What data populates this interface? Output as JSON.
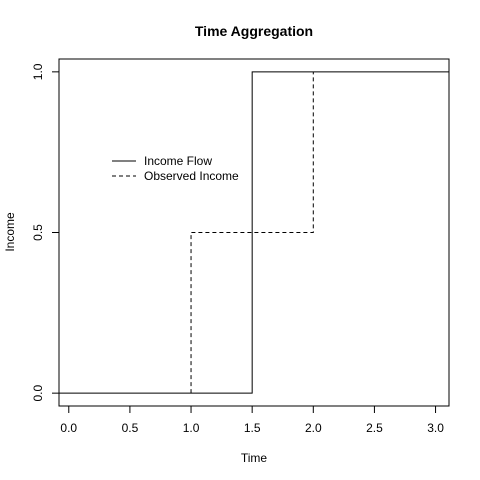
{
  "chart_data": {
    "type": "line",
    "title": "Time Aggregation",
    "xlabel": "Time",
    "ylabel": "Income",
    "xlim": [
      -0.08,
      3.11
    ],
    "ylim": [
      -0.04,
      1.04
    ],
    "x_ticks": [
      0.0,
      0.5,
      1.0,
      1.5,
      2.0,
      2.5,
      3.0
    ],
    "x_tick_labels": [
      "0.0",
      "0.5",
      "1.0",
      "1.5",
      "2.0",
      "2.5",
      "3.0"
    ],
    "y_ticks": [
      0.0,
      0.5,
      1.0
    ],
    "y_tick_labels": [
      "0.0",
      "0.5",
      "1.0"
    ],
    "grid": false,
    "legend_position": "top-left",
    "series": [
      {
        "name": "Income Flow",
        "line_style": "solid",
        "color": "#000000",
        "x": [
          -0.08,
          1.5,
          1.5,
          3.11
        ],
        "y": [
          0,
          0,
          1,
          1
        ]
      },
      {
        "name": "Observed Income",
        "line_style": "dashed",
        "color": "#000000",
        "x": [
          1.0,
          1.0,
          2.0,
          2.0
        ],
        "y": [
          0,
          0.5,
          0.5,
          1
        ]
      }
    ]
  }
}
